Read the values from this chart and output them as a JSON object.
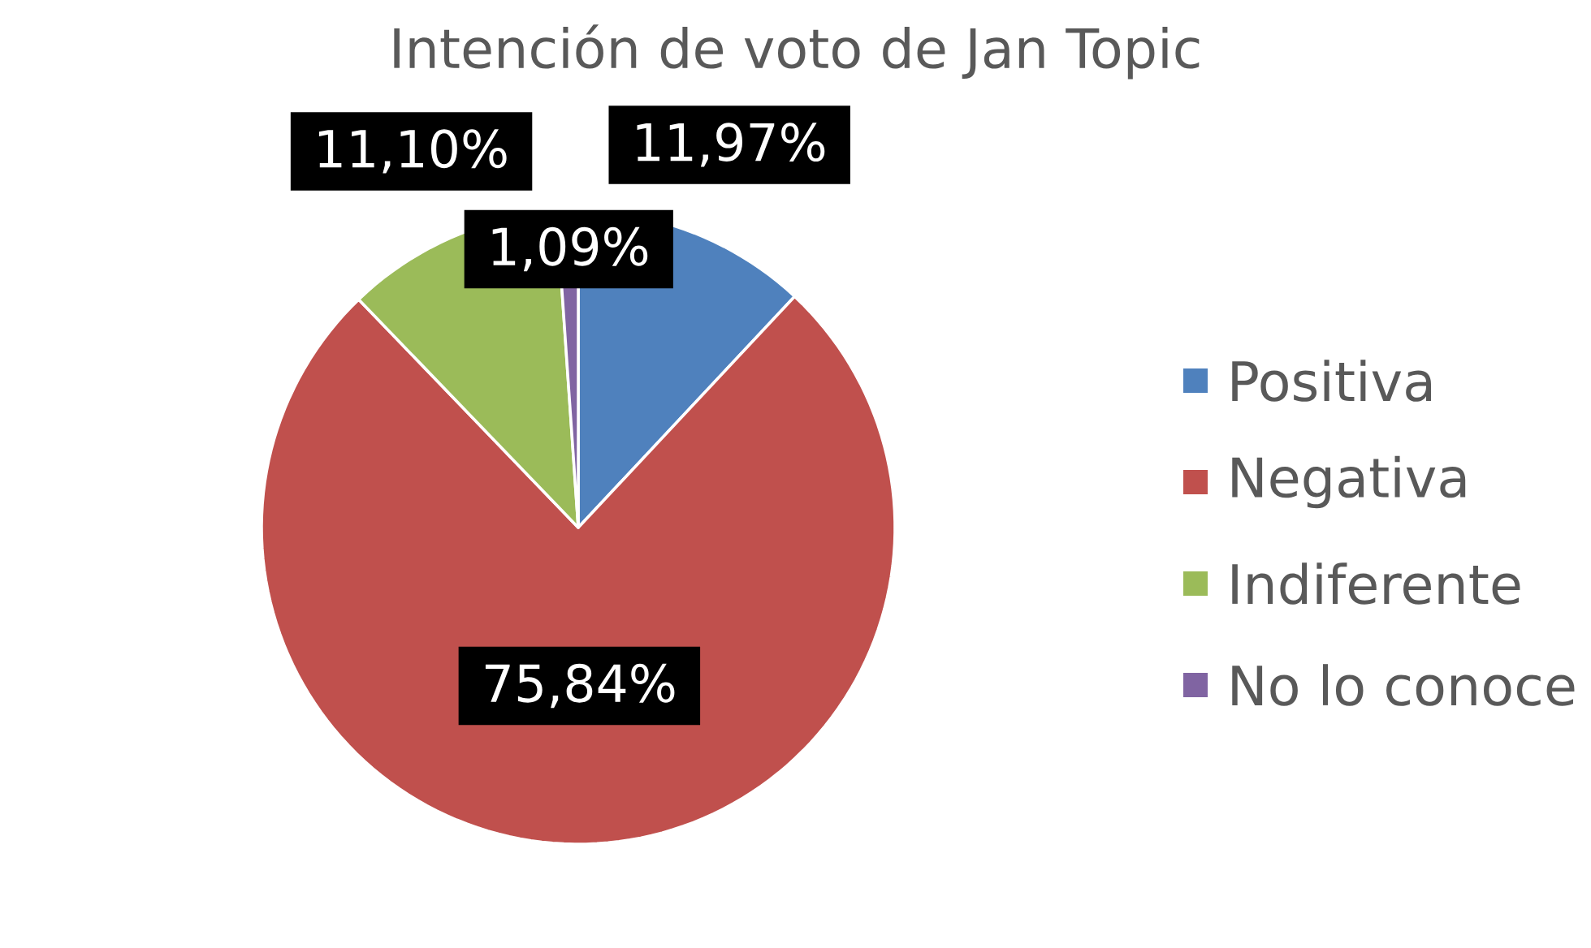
{
  "chart_data": {
    "type": "pie",
    "title": "Intención de voto de Jan Topic",
    "categories": [
      "Positiva",
      "Negativa",
      "Indiferente",
      "No lo conoce"
    ],
    "values": [
      11.97,
      75.84,
      11.1,
      1.09
    ],
    "colors": [
      "#4f81bd",
      "#c0504d",
      "#9bbb59",
      "#8064a2"
    ],
    "value_labels": [
      "11,97%",
      "75,84%",
      "11,10%",
      "1,09%"
    ],
    "legend": "right"
  }
}
